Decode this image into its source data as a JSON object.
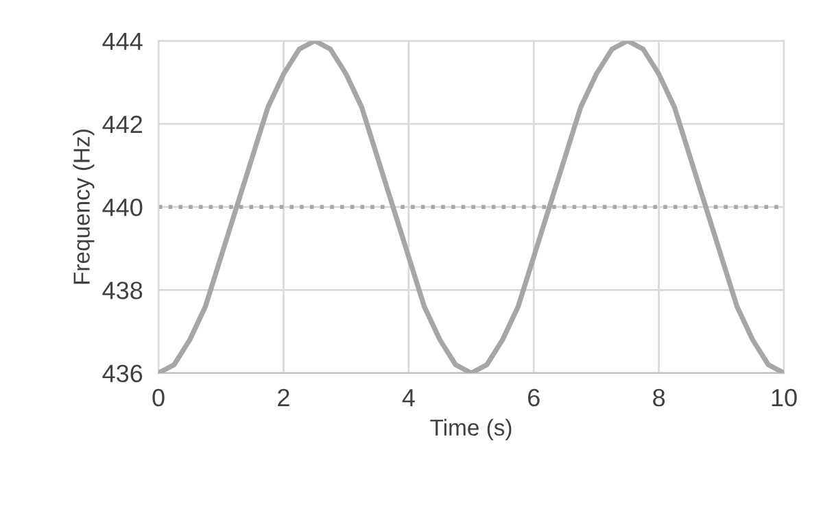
{
  "chart_data": {
    "type": "line",
    "xlabel": "Time (s)",
    "ylabel": "Frequency (Hz)",
    "x": [
      0,
      0.25,
      0.5,
      0.75,
      1,
      1.25,
      1.5,
      1.75,
      2,
      2.25,
      2.5,
      2.75,
      3,
      3.25,
      3.5,
      3.75,
      4,
      4.25,
      4.5,
      4.75,
      5,
      5.25,
      5.5,
      5.75,
      6,
      6.25,
      6.5,
      6.75,
      7,
      7.25,
      7.5,
      7.75,
      8,
      8.25,
      8.5,
      8.75,
      9,
      9.25,
      9.5,
      9.75,
      10
    ],
    "series": [
      {
        "color": "#a6a6a6",
        "values": [
          436,
          436.2,
          436.8,
          437.6,
          438.8,
          440,
          441.2,
          442.4,
          443.2,
          443.8,
          444,
          443.8,
          443.2,
          442.4,
          441.2,
          440,
          438.8,
          437.6,
          436.8,
          436.2,
          436,
          436.2,
          436.8,
          437.6,
          438.8,
          440,
          441.2,
          442.4,
          443.2,
          443.8,
          444,
          443.8,
          443.2,
          442.4,
          441.2,
          440,
          438.8,
          437.6,
          436.8,
          436.2,
          436
        ]
      }
    ],
    "ref_lines": [
      {
        "axis": "y",
        "value": 440,
        "color": "#a6a6a6",
        "line_style": "dotted"
      }
    ],
    "xlim": [
      0,
      10
    ],
    "xticks": [
      0,
      2,
      4,
      6,
      8,
      10
    ],
    "ylim": [
      436,
      444
    ],
    "yticks": [
      436,
      438,
      440,
      442,
      444
    ],
    "grid": true,
    "legend": false,
    "marker": "none",
    "line_style": "solid"
  }
}
